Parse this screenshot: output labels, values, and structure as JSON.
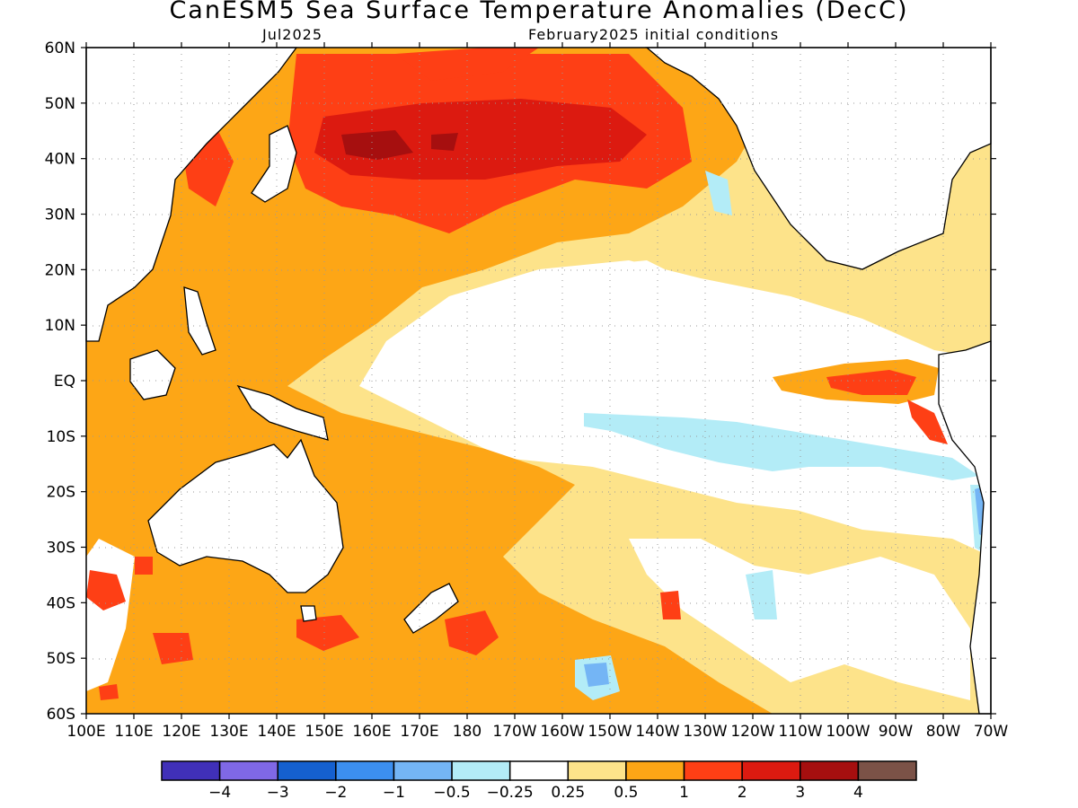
{
  "title": "CanESM5 Sea Surface Temperature Anomalies (DecC)",
  "subtitle_left": "Jul2025",
  "subtitle_right": "February2025 initial conditions",
  "lat_labels": [
    "60N",
    "50N",
    "40N",
    "30N",
    "20N",
    "10N",
    "EQ",
    "10S",
    "20S",
    "30S",
    "40S",
    "50S",
    "60S"
  ],
  "lon_labels": [
    "100E",
    "110E",
    "120E",
    "130E",
    "140E",
    "150E",
    "160E",
    "170E",
    "180",
    "170W",
    "160W",
    "150W",
    "140W",
    "130W",
    "120W",
    "110W",
    "100W",
    "90W",
    "80W",
    "70W"
  ],
  "colorbar": {
    "colors": [
      "#4030b8",
      "#7f68e6",
      "#1560cf",
      "#3c8ff0",
      "#74b5f5",
      "#b3ecf7",
      "#ffffff",
      "#fde38a",
      "#fda616",
      "#fe3f15",
      "#dc1a10",
      "#a60f0f",
      "#7b5247"
    ],
    "labels": [
      "−4",
      "−3",
      "−2",
      "−1",
      "−0.5",
      "−0.25",
      "0.25",
      "0.5",
      "1",
      "2",
      "3",
      "4"
    ]
  }
}
